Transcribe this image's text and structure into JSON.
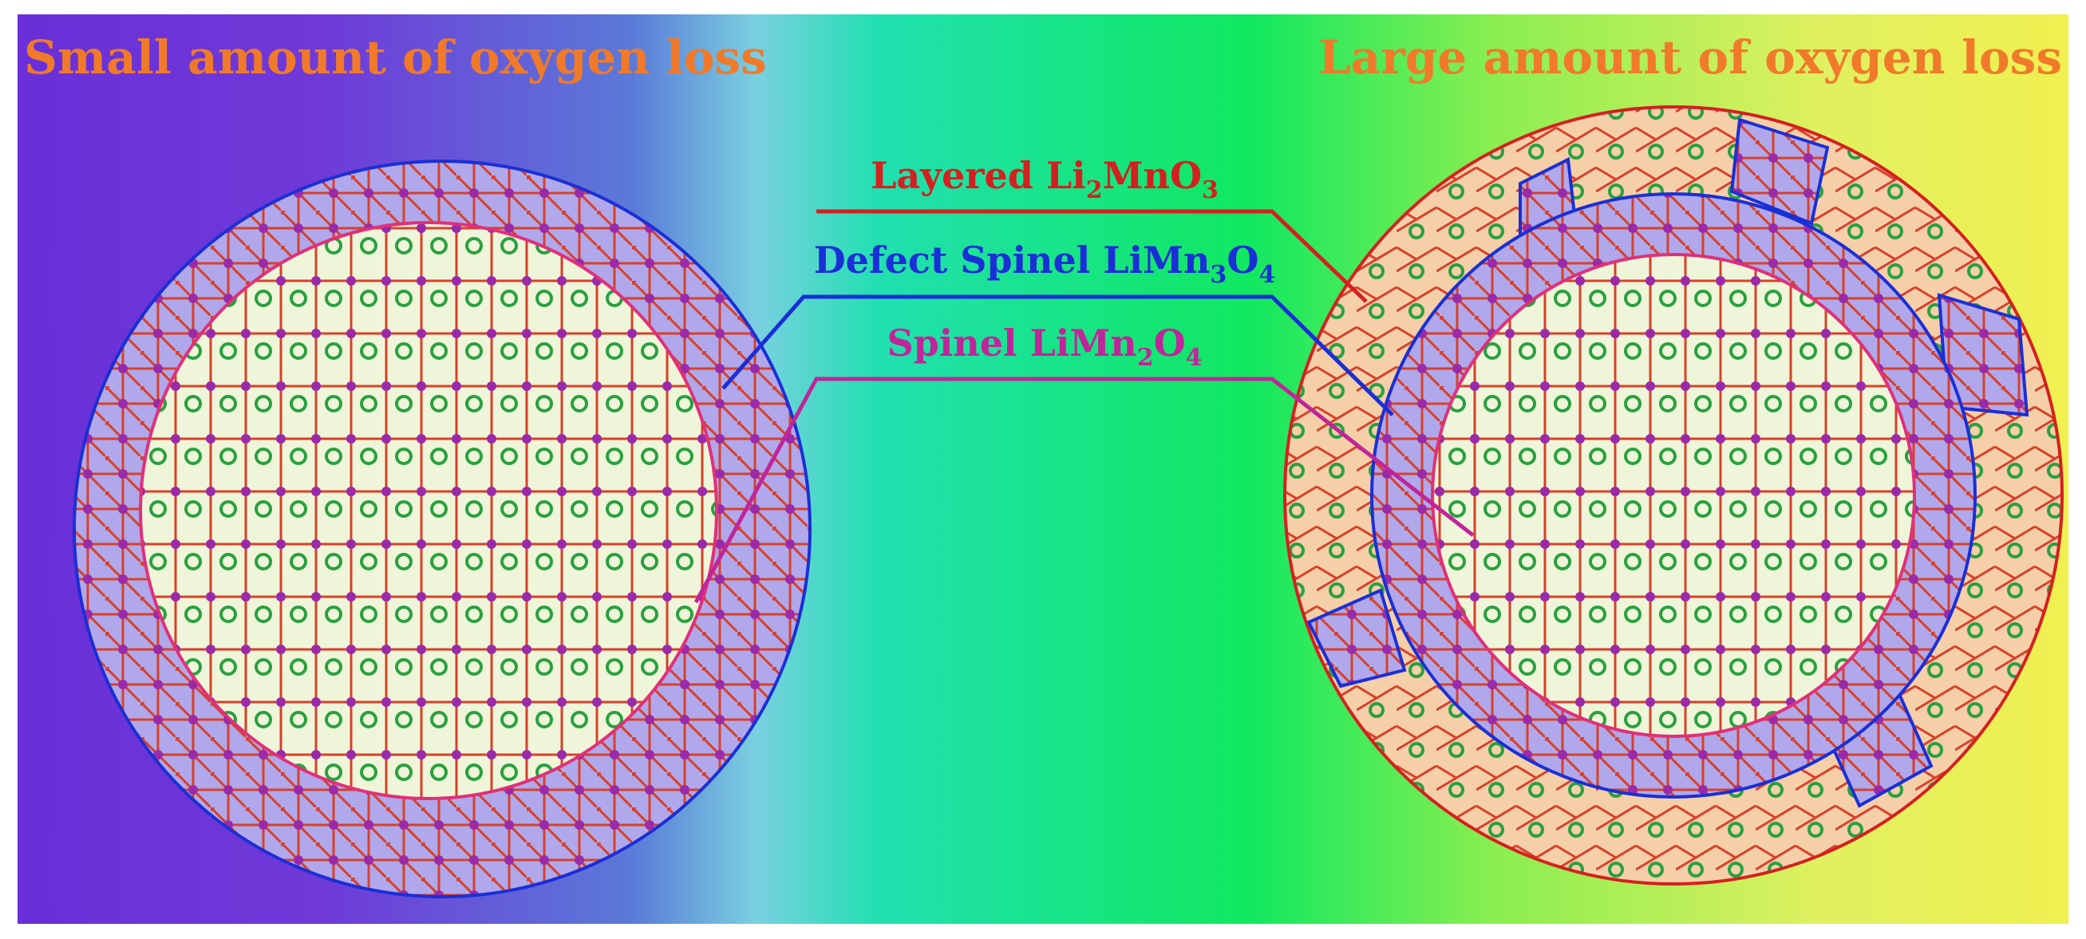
{
  "headings": {
    "left": "Small amount of oxygen loss",
    "right": "Large amount of oxygen loss"
  },
  "labels": [
    {
      "parts": [
        "Layered Li",
        "2",
        "MnO",
        "3"
      ],
      "color": "#d42020"
    },
    {
      "parts": [
        "Defect Spinel LiMn",
        "3",
        "O",
        "4"
      ],
      "color": "#1a2fd6"
    },
    {
      "parts": [
        "Spinel  LiMn",
        "2",
        "O",
        "4"
      ],
      "color": "#c0259a"
    }
  ]
}
